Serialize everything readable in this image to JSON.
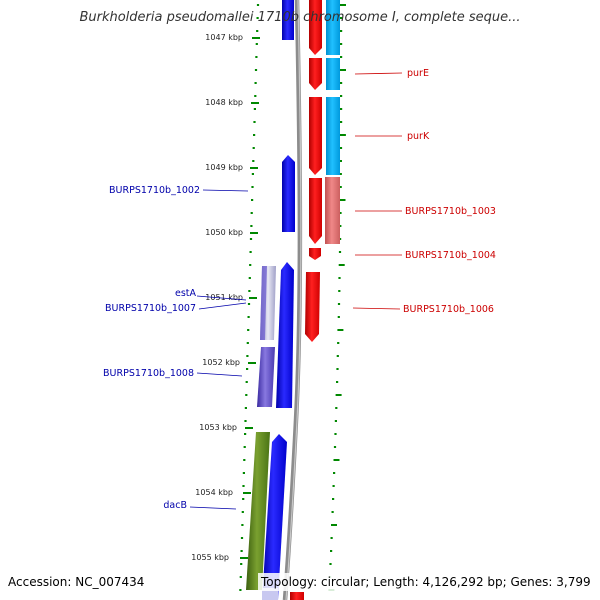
{
  "title": "Burkholderia pseudomallei 1710b chromosome I, complete seque...",
  "accession_text": "Accession: NC_007434",
  "summary_text": "Topology: circular; Length: 4,126,292 bp; Genes: 3,799",
  "axis": {
    "ticks": [
      "1047 kbp",
      "1048 kbp",
      "1049 kbp",
      "1050 kbp",
      "1051 kbp",
      "1052 kbp",
      "1053 kbp",
      "1054 kbp",
      "1055 kbp"
    ]
  },
  "labels_left": [
    {
      "text": "BURPS1710b_1002",
      "color": "#0000aa"
    },
    {
      "text": "estA",
      "color": "#0000aa"
    },
    {
      "text": "BURPS1710b_1007",
      "color": "#0000aa"
    },
    {
      "text": "BURPS1710b_1008",
      "color": "#0000aa"
    },
    {
      "text": "dacB",
      "color": "#0000aa"
    }
  ],
  "labels_right": [
    {
      "text": "purE",
      "color": "#cc0000"
    },
    {
      "text": "purK",
      "color": "#cc0000"
    },
    {
      "text": "BURPS1710b_1003",
      "color": "#cc0000"
    },
    {
      "text": "BURPS1710b_1004",
      "color": "#cc0000"
    },
    {
      "text": "BURPS1710b_1006",
      "color": "#cc0000"
    }
  ],
  "colors": {
    "forward_cds": "#0000ee",
    "reverse_cds": "#ee0000",
    "gene_cyan": "#00aaee",
    "gene_pink": "#e07070",
    "gene_green": "#5a8a1a",
    "gene_purple": "#6a5acd",
    "backbone": "#8c8c8c",
    "tick_green": "#008800"
  }
}
